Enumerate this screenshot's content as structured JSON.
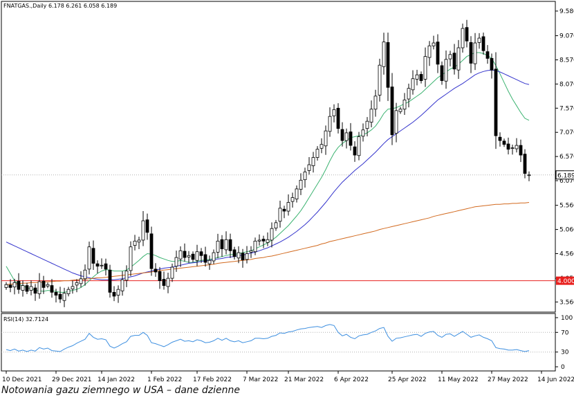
{
  "chart_data": {
    "type": "candlestick",
    "header": "FNATGAS.,Daily  6.178 6.261 6.058 6.189",
    "symbol": "FNATGAS.",
    "timeframe": "Daily",
    "last_ohlc": {
      "open": 6.178,
      "high": 6.261,
      "low": 6.058,
      "close": 6.189
    },
    "price_axis": {
      "ylim": [
        3.35,
        9.78
      ],
      "tick_labels": [
        "9.580",
        "9.070",
        "8.570",
        "8.070",
        "7.570",
        "7.070",
        "6.570",
        "6.070",
        "5.560",
        "5.060",
        "4.560",
        "4.050",
        "3.560"
      ],
      "tick_values": [
        9.58,
        9.07,
        8.57,
        8.07,
        7.57,
        7.07,
        6.57,
        6.07,
        5.56,
        5.06,
        4.56,
        4.05,
        3.56
      ]
    },
    "x_axis": {
      "labels": [
        "10 Dec 2021",
        "29 Dec 2021",
        "14 Jan 2022",
        "1 Feb 2022",
        "17 Feb 2022",
        "7 Mar 2022",
        "21 Mar 2022",
        "6 Apr 2022",
        "25 Apr 2022",
        "11 May 2022",
        "27 May 2022",
        "14 Jun 2022"
      ],
      "label_bar_index": [
        0,
        12,
        23,
        35,
        46,
        58,
        68,
        80,
        93,
        105,
        117,
        129
      ]
    },
    "price_marker": {
      "value": 6.189,
      "label": "6.189"
    },
    "horizontal_line": {
      "value": 4.0,
      "label": "4.000",
      "color": "#e8201e"
    },
    "candles_close": [
      3.92,
      3.86,
      3.96,
      3.82,
      3.9,
      3.78,
      3.88,
      3.74,
      3.98,
      3.86,
      3.92,
      3.76,
      3.7,
      3.62,
      3.74,
      3.82,
      3.88,
      3.96,
      4.04,
      4.22,
      4.7,
      4.36,
      4.3,
      4.32,
      4.24,
      3.76,
      3.68,
      3.82,
      4.02,
      4.2,
      4.7,
      4.82,
      4.84,
      5.24,
      5.0,
      4.25,
      4.18,
      4.0,
      3.9,
      4.05,
      4.28,
      4.48,
      4.62,
      4.48,
      4.52,
      4.44,
      4.6,
      4.52,
      4.38,
      4.42,
      4.58,
      4.82,
      4.66,
      4.85,
      4.62,
      4.5,
      4.58,
      4.43,
      4.56,
      4.62,
      4.82,
      4.84,
      4.82,
      4.85,
      5.08,
      5.2,
      5.5,
      5.44,
      5.62,
      5.72,
      5.9,
      6.08,
      6.25,
      6.4,
      6.55,
      6.72,
      6.82,
      7.1,
      7.4,
      7.54,
      7.15,
      6.9,
      7.06,
      6.8,
      6.6,
      6.98,
      7.12,
      7.3,
      7.55,
      7.82,
      8.46,
      8.94,
      8.0,
      7.02,
      7.52,
      7.55,
      7.74,
      7.98,
      8.18,
      8.26,
      8.14,
      8.64,
      8.86,
      8.92,
      8.48,
      8.14,
      8.58,
      8.68,
      8.38,
      8.82,
      9.22,
      8.96,
      8.5,
      8.92,
      9.02,
      8.76,
      8.6,
      8.36,
      7.0,
      6.9,
      6.82,
      6.72,
      6.75,
      6.8,
      6.6,
      6.22,
      6.19
    ],
    "moving_averages": [
      {
        "name": "MA (short)",
        "color": "#3cb371",
        "values": [
          4.3,
          4.15,
          4.0,
          3.92,
          3.9,
          3.85,
          3.84,
          3.8,
          3.79,
          3.78,
          3.8,
          3.79,
          3.78,
          3.76,
          3.76,
          3.78,
          3.8,
          3.82,
          3.86,
          3.92,
          4.0,
          4.08,
          4.15,
          4.2,
          4.23,
          4.22,
          4.2,
          4.2,
          4.2,
          4.22,
          4.28,
          4.35,
          4.42,
          4.5,
          4.56,
          4.55,
          4.52,
          4.48,
          4.45,
          4.42,
          4.4,
          4.4,
          4.42,
          4.4,
          4.38,
          4.38,
          4.4,
          4.42,
          4.43,
          4.44,
          4.46,
          4.48,
          4.5,
          4.52,
          4.54,
          4.54,
          4.56,
          4.58,
          4.6,
          4.62,
          4.66,
          4.7,
          4.74,
          4.78,
          4.84,
          4.9,
          4.98,
          5.06,
          5.14,
          5.24,
          5.34,
          5.45,
          5.58,
          5.72,
          5.86,
          6.0,
          6.14,
          6.3,
          6.48,
          6.64,
          6.76,
          6.84,
          6.9,
          6.96,
          6.98,
          7.0,
          7.02,
          7.06,
          7.12,
          7.2,
          7.32,
          7.46,
          7.55,
          7.56,
          7.58,
          7.62,
          7.66,
          7.7,
          7.76,
          7.82,
          7.88,
          7.96,
          8.04,
          8.12,
          8.2,
          8.26,
          8.32,
          8.38,
          8.42,
          8.48,
          8.56,
          8.64,
          8.68,
          8.72,
          8.72,
          8.7,
          8.66,
          8.6,
          8.45,
          8.28,
          8.1,
          7.92,
          7.76,
          7.62,
          7.48,
          7.36,
          7.32
        ]
      },
      {
        "name": "MA (medium)",
        "color": "#3333cc",
        "values": [
          4.8,
          4.76,
          4.72,
          4.68,
          4.64,
          4.6,
          4.56,
          4.52,
          4.48,
          4.44,
          4.4,
          4.36,
          4.32,
          4.28,
          4.24,
          4.2,
          4.16,
          4.13,
          4.1,
          4.08,
          4.06,
          4.04,
          4.03,
          4.02,
          4.02,
          4.02,
          4.02,
          4.03,
          4.04,
          4.06,
          4.08,
          4.1,
          4.13,
          4.16,
          4.18,
          4.2,
          4.22,
          4.24,
          4.26,
          4.27,
          4.28,
          4.3,
          4.32,
          4.34,
          4.36,
          4.37,
          4.38,
          4.4,
          4.41,
          4.42,
          4.44,
          4.45,
          4.46,
          4.48,
          4.49,
          4.5,
          4.52,
          4.53,
          4.55,
          4.57,
          4.59,
          4.62,
          4.65,
          4.68,
          4.72,
          4.76,
          4.8,
          4.85,
          4.9,
          4.96,
          5.02,
          5.09,
          5.16,
          5.24,
          5.33,
          5.42,
          5.52,
          5.62,
          5.73,
          5.84,
          5.94,
          6.04,
          6.12,
          6.2,
          6.28,
          6.35,
          6.42,
          6.5,
          6.58,
          6.66,
          6.75,
          6.84,
          6.92,
          6.98,
          7.04,
          7.1,
          7.16,
          7.22,
          7.28,
          7.35,
          7.42,
          7.5,
          7.58,
          7.66,
          7.74,
          7.8,
          7.86,
          7.92,
          7.98,
          8.03,
          8.08,
          8.14,
          8.2,
          8.26,
          8.3,
          8.33,
          8.35,
          8.36,
          8.35,
          8.32,
          8.28,
          8.24,
          8.2,
          8.16,
          8.12,
          8.08,
          8.06
        ]
      },
      {
        "name": "MA (long)",
        "color": "#d2691e",
        "values": [
          3.92,
          3.93,
          3.93,
          3.94,
          3.95,
          3.95,
          3.96,
          3.96,
          3.97,
          3.97,
          3.98,
          3.98,
          3.99,
          3.99,
          4.0,
          4.0,
          4.01,
          4.02,
          4.02,
          4.03,
          4.04,
          4.05,
          4.06,
          4.06,
          4.07,
          4.08,
          4.09,
          4.1,
          4.11,
          4.12,
          4.13,
          4.14,
          4.15,
          4.16,
          4.17,
          4.18,
          4.2,
          4.21,
          4.22,
          4.23,
          4.24,
          4.25,
          4.26,
          4.27,
          4.28,
          4.29,
          4.3,
          4.31,
          4.32,
          4.33,
          4.34,
          4.36,
          4.37,
          4.38,
          4.39,
          4.4,
          4.41,
          4.42,
          4.43,
          4.44,
          4.46,
          4.47,
          4.48,
          4.5,
          4.51,
          4.53,
          4.55,
          4.57,
          4.59,
          4.61,
          4.63,
          4.65,
          4.67,
          4.69,
          4.71,
          4.73,
          4.76,
          4.78,
          4.81,
          4.83,
          4.85,
          4.87,
          4.89,
          4.91,
          4.93,
          4.95,
          4.97,
          4.99,
          5.01,
          5.03,
          5.06,
          5.08,
          5.1,
          5.12,
          5.14,
          5.16,
          5.18,
          5.2,
          5.22,
          5.24,
          5.26,
          5.28,
          5.3,
          5.33,
          5.35,
          5.37,
          5.39,
          5.41,
          5.43,
          5.45,
          5.47,
          5.49,
          5.51,
          5.53,
          5.54,
          5.55,
          5.56,
          5.57,
          5.58,
          5.58,
          5.59,
          5.59,
          5.6,
          5.6,
          5.61,
          5.61,
          5.62
        ]
      }
    ],
    "rsi": {
      "label": "RSI(14) 32.7124",
      "period": 14,
      "value": 32.7124,
      "color": "#3d8fe0",
      "ylim": [
        0,
        100
      ],
      "tick_labels": [
        "100",
        "70",
        "30",
        "0"
      ],
      "tick_values": [
        100,
        70,
        30,
        0
      ],
      "values": [
        35,
        33,
        36,
        32,
        34,
        31,
        34,
        32,
        39,
        36,
        38,
        33,
        32,
        31,
        36,
        40,
        43,
        48,
        52,
        56,
        68,
        60,
        56,
        57,
        55,
        42,
        38,
        42,
        47,
        51,
        62,
        64,
        64,
        70,
        64,
        49,
        47,
        44,
        41,
        45,
        50,
        53,
        56,
        52,
        53,
        51,
        55,
        53,
        49,
        50,
        53,
        58,
        54,
        58,
        53,
        51,
        53,
        49,
        51,
        53,
        58,
        58,
        57,
        58,
        62,
        64,
        69,
        68,
        71,
        72,
        75,
        77,
        78,
        80,
        81,
        82,
        80,
        84,
        86,
        84,
        70,
        63,
        66,
        60,
        57,
        63,
        65,
        66,
        70,
        73,
        78,
        80,
        62,
        52,
        58,
        59,
        61,
        63,
        65,
        66,
        62,
        68,
        71,
        72,
        64,
        60,
        66,
        67,
        62,
        67,
        72,
        66,
        60,
        63,
        65,
        60,
        57,
        53,
        39,
        37,
        36,
        34,
        34,
        35,
        33,
        31,
        33
      ]
    }
  },
  "caption": "Notowania gazu ziemnego w USA – dane dzienne"
}
